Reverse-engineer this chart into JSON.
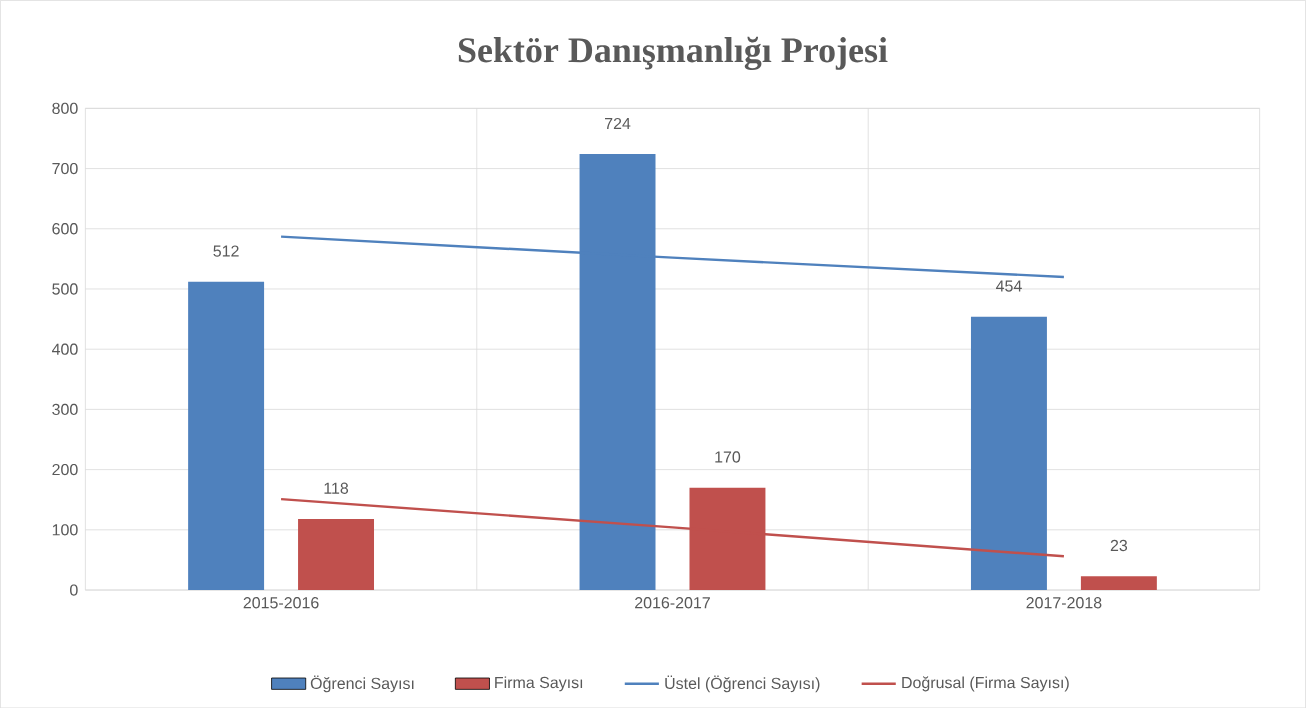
{
  "chart_data": {
    "type": "bar",
    "title": "Sektör Danışmanlığı Projesi",
    "categories": [
      "2015-2016",
      "2016-2017",
      "2017-2018"
    ],
    "series": [
      {
        "name": "Öğrenci Sayısı",
        "color": "#4f81bd",
        "values": [
          512,
          724,
          454
        ],
        "value_labels": [
          "512",
          "724",
          "454"
        ]
      },
      {
        "name": "Firma Sayısı",
        "color": "#c0504d",
        "values": [
          118,
          170,
          23
        ],
        "value_labels": [
          "118",
          "170",
          "23"
        ]
      },
      {
        "name": "Üstel (Öğrenci Sayısı)",
        "type": "line",
        "color": "#4f81bd",
        "values": [
          587,
          552,
          520
        ]
      },
      {
        "name": "Doğrusal (Firma Sayısı)",
        "type": "line",
        "color": "#c0504d",
        "values": [
          151,
          104,
          56
        ]
      }
    ],
    "ylim": [
      0,
      800
    ],
    "yticks": [
      0,
      100,
      200,
      300,
      400,
      500,
      600,
      700,
      800
    ],
    "grid": true,
    "legend": "bottom"
  }
}
